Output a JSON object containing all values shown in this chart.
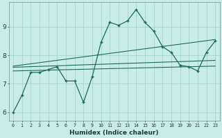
{
  "title": "",
  "xlabel": "Humidex (Indice chaleur)",
  "background_color": "#c8ede8",
  "grid_color": "#aad8d0",
  "line_color": "#1a6b5a",
  "xlim": [
    -0.5,
    23.5
  ],
  "ylim": [
    5.7,
    9.85
  ],
  "yticks": [
    6,
    7,
    8,
    9
  ],
  "xticks": [
    0,
    1,
    2,
    3,
    4,
    5,
    6,
    7,
    8,
    9,
    10,
    11,
    12,
    13,
    14,
    15,
    16,
    17,
    18,
    19,
    20,
    21,
    22,
    23
  ],
  "main_line_x": [
    0,
    1,
    2,
    3,
    4,
    5,
    6,
    7,
    8,
    9,
    10,
    11,
    12,
    13,
    14,
    15,
    16,
    17,
    18,
    19,
    20,
    21,
    22,
    23
  ],
  "main_line_y": [
    6.0,
    6.6,
    7.4,
    7.4,
    7.5,
    7.6,
    7.1,
    7.1,
    6.35,
    7.25,
    8.45,
    9.15,
    9.05,
    9.2,
    9.6,
    9.15,
    8.85,
    8.3,
    8.1,
    7.65,
    7.6,
    7.45,
    8.1,
    8.5
  ],
  "smooth_line1_x": [
    0,
    23
  ],
  "smooth_line1_y": [
    7.45,
    7.62
  ],
  "smooth_line2_x": [
    0,
    23
  ],
  "smooth_line2_y": [
    7.58,
    7.82
  ],
  "smooth_line3_x": [
    0,
    23
  ],
  "smooth_line3_y": [
    7.62,
    8.55
  ],
  "figsize": [
    3.2,
    2.0
  ],
  "dpi": 100
}
